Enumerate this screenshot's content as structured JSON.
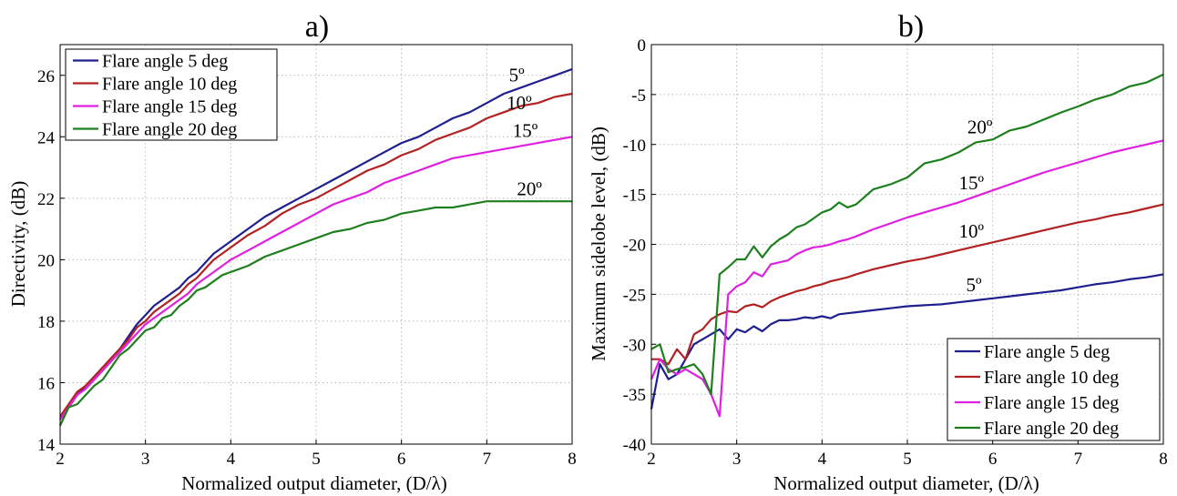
{
  "panels": [
    {
      "title": "a)",
      "xlabel": "Normalized output diameter, (D/λ)",
      "ylabel": "Directivity, (dB)"
    },
    {
      "title": "b)",
      "xlabel": "Normalized output diameter, (D/λ)",
      "ylabel": "Maximum sidelobe level, (dB)"
    }
  ],
  "chart_data": [
    {
      "type": "line",
      "title": "a)",
      "xlabel": "Normalized output diameter, (D/λ)",
      "ylabel": "Directivity, (dB)",
      "xlim": [
        2,
        8
      ],
      "ylim": [
        14,
        27
      ],
      "xticks": [
        "2",
        "3",
        "4",
        "5",
        "6",
        "7",
        "8"
      ],
      "yticks": [
        "14",
        "16",
        "18",
        "20",
        "22",
        "24",
        "26"
      ],
      "xtick_values": [
        2,
        3,
        4,
        5,
        6,
        7,
        8
      ],
      "ytick_values": [
        14,
        16,
        18,
        20,
        22,
        24,
        26
      ],
      "grid": true,
      "legend": "top-left",
      "series": [
        {
          "name": "Flare angle 5 deg",
          "color": "#1f1f8f",
          "x": [
            2,
            2.1,
            2.2,
            2.3,
            2.4,
            2.5,
            2.6,
            2.7,
            2.8,
            2.9,
            3.0,
            3.1,
            3.2,
            3.3,
            3.4,
            3.5,
            3.6,
            3.7,
            3.8,
            3.9,
            4.0,
            4.2,
            4.4,
            4.6,
            4.8,
            5.0,
            5.2,
            5.4,
            5.6,
            5.8,
            6.0,
            6.2,
            6.4,
            6.6,
            6.8,
            7.0,
            7.2,
            7.4,
            7.6,
            7.8,
            8.0
          ],
          "y": [
            14.8,
            15.2,
            15.6,
            15.9,
            16.2,
            16.5,
            16.8,
            17.1,
            17.5,
            17.9,
            18.2,
            18.5,
            18.7,
            18.9,
            19.1,
            19.4,
            19.6,
            19.9,
            20.2,
            20.4,
            20.6,
            21.0,
            21.4,
            21.7,
            22.0,
            22.3,
            22.6,
            22.9,
            23.2,
            23.5,
            23.8,
            24.0,
            24.3,
            24.6,
            24.8,
            25.1,
            25.4,
            25.6,
            25.8,
            26.0,
            26.2
          ]
        },
        {
          "name": "Flare angle 10 deg",
          "color": "#b22222",
          "x": [
            2,
            2.1,
            2.2,
            2.3,
            2.4,
            2.5,
            2.6,
            2.7,
            2.8,
            2.9,
            3.0,
            3.1,
            3.2,
            3.3,
            3.4,
            3.5,
            3.6,
            3.7,
            3.8,
            3.9,
            4.0,
            4.2,
            4.4,
            4.6,
            4.8,
            5.0,
            5.2,
            5.4,
            5.6,
            5.8,
            6.0,
            6.2,
            6.4,
            6.6,
            6.8,
            7.0,
            7.2,
            7.4,
            7.6,
            7.8,
            8.0
          ],
          "y": [
            14.9,
            15.3,
            15.7,
            15.9,
            16.2,
            16.5,
            16.8,
            17.1,
            17.4,
            17.8,
            18.0,
            18.3,
            18.5,
            18.7,
            18.9,
            19.2,
            19.4,
            19.7,
            20.0,
            20.2,
            20.4,
            20.8,
            21.1,
            21.5,
            21.8,
            22.0,
            22.3,
            22.6,
            22.9,
            23.1,
            23.4,
            23.6,
            23.9,
            24.1,
            24.3,
            24.6,
            24.8,
            25.0,
            25.1,
            25.3,
            25.4
          ]
        },
        {
          "name": "Flare angle 15 deg",
          "color": "#e020e0",
          "x": [
            2,
            2.1,
            2.2,
            2.3,
            2.4,
            2.5,
            2.6,
            2.7,
            2.8,
            2.9,
            3.0,
            3.1,
            3.2,
            3.3,
            3.4,
            3.5,
            3.6,
            3.7,
            3.8,
            3.9,
            4.0,
            4.2,
            4.4,
            4.6,
            4.8,
            5.0,
            5.2,
            5.4,
            5.6,
            5.8,
            6.0,
            6.2,
            6.4,
            6.6,
            6.8,
            7.0,
            7.2,
            7.4,
            7.6,
            7.8,
            8.0
          ],
          "y": [
            14.8,
            15.2,
            15.6,
            15.8,
            16.1,
            16.4,
            16.7,
            17.0,
            17.3,
            17.6,
            17.9,
            18.1,
            18.3,
            18.5,
            18.7,
            18.9,
            19.2,
            19.4,
            19.6,
            19.8,
            20.0,
            20.3,
            20.6,
            20.9,
            21.2,
            21.5,
            21.8,
            22.0,
            22.2,
            22.5,
            22.7,
            22.9,
            23.1,
            23.3,
            23.4,
            23.5,
            23.6,
            23.7,
            23.8,
            23.9,
            24.0
          ]
        },
        {
          "name": "Flare angle 20 deg",
          "color": "#1e7f1e",
          "x": [
            2,
            2.1,
            2.2,
            2.3,
            2.4,
            2.5,
            2.6,
            2.7,
            2.8,
            2.9,
            3.0,
            3.1,
            3.2,
            3.3,
            3.4,
            3.5,
            3.6,
            3.7,
            3.8,
            3.9,
            4.0,
            4.2,
            4.4,
            4.6,
            4.8,
            5.0,
            5.2,
            5.4,
            5.6,
            5.8,
            6.0,
            6.2,
            6.4,
            6.6,
            6.8,
            7.0,
            7.2,
            7.4,
            7.6,
            7.8,
            8.0
          ],
          "y": [
            14.6,
            15.2,
            15.3,
            15.6,
            15.9,
            16.1,
            16.5,
            16.9,
            17.1,
            17.4,
            17.7,
            17.8,
            18.1,
            18.2,
            18.5,
            18.7,
            19.0,
            19.1,
            19.3,
            19.5,
            19.6,
            19.8,
            20.1,
            20.3,
            20.5,
            20.7,
            20.9,
            21.0,
            21.2,
            21.3,
            21.5,
            21.6,
            21.7,
            21.7,
            21.8,
            21.9,
            21.9,
            21.9,
            21.9,
            21.9,
            21.9
          ]
        }
      ],
      "annotations": [
        {
          "text": "5º",
          "x": 7.35,
          "y": 25.8
        },
        {
          "text": "10º",
          "x": 7.38,
          "y": 24.9
        },
        {
          "text": "15º",
          "x": 7.45,
          "y": 24.0
        },
        {
          "text": "20º",
          "x": 7.5,
          "y": 22.1
        }
      ]
    },
    {
      "type": "line",
      "title": "b)",
      "xlabel": "Normalized output diameter, (D/λ)",
      "ylabel": "Maximum sidelobe level, (dB)",
      "xlim": [
        2,
        8
      ],
      "ylim": [
        -40,
        0
      ],
      "xticks": [
        "2",
        "3",
        "4",
        "5",
        "6",
        "7",
        "8"
      ],
      "yticks": [
        "-40",
        "-35",
        "-30",
        "-25",
        "-20",
        "-15",
        "-10",
        "-5",
        "0"
      ],
      "xtick_values": [
        2,
        3,
        4,
        5,
        6,
        7,
        8
      ],
      "ytick_values": [
        -40,
        -35,
        -30,
        -25,
        -20,
        -15,
        -10,
        -5,
        0
      ],
      "grid": true,
      "legend": "bottom-right",
      "series": [
        {
          "name": "Flare angle 5 deg",
          "color": "#1f1f8f",
          "x": [
            2.0,
            2.1,
            2.2,
            2.3,
            2.4,
            2.5,
            2.6,
            2.7,
            2.8,
            2.9,
            3.0,
            3.1,
            3.2,
            3.3,
            3.4,
            3.5,
            3.6,
            3.7,
            3.8,
            3.9,
            4.0,
            4.1,
            4.2,
            4.3,
            4.4,
            4.6,
            4.8,
            5.0,
            5.2,
            5.4,
            5.6,
            5.8,
            6.0,
            6.2,
            6.4,
            6.6,
            6.8,
            7.0,
            7.2,
            7.4,
            7.6,
            7.8,
            8.0
          ],
          "y": [
            -36.5,
            -32.0,
            -33.5,
            -33.0,
            -31.5,
            -30.0,
            -29.5,
            -29.0,
            -28.5,
            -29.5,
            -28.5,
            -28.8,
            -28.2,
            -28.7,
            -28.0,
            -27.6,
            -27.6,
            -27.5,
            -27.3,
            -27.4,
            -27.2,
            -27.4,
            -27.0,
            -26.9,
            -26.8,
            -26.6,
            -26.4,
            -26.2,
            -26.1,
            -26.0,
            -25.8,
            -25.6,
            -25.4,
            -25.2,
            -25.0,
            -24.8,
            -24.6,
            -24.3,
            -24.0,
            -23.8,
            -23.5,
            -23.3,
            -23.0
          ]
        },
        {
          "name": "Flare angle 10 deg",
          "color": "#b22222",
          "x": [
            2.0,
            2.1,
            2.2,
            2.3,
            2.4,
            2.5,
            2.6,
            2.7,
            2.8,
            2.9,
            3.0,
            3.1,
            3.2,
            3.3,
            3.4,
            3.5,
            3.6,
            3.7,
            3.8,
            3.9,
            4.0,
            4.1,
            4.2,
            4.3,
            4.4,
            4.6,
            4.8,
            5.0,
            5.2,
            5.4,
            5.6,
            5.8,
            6.0,
            6.2,
            6.4,
            6.6,
            6.8,
            7.0,
            7.2,
            7.4,
            7.6,
            7.8,
            8.0
          ],
          "y": [
            -31.5,
            -31.5,
            -32.0,
            -30.5,
            -31.5,
            -29.0,
            -28.5,
            -27.5,
            -27.0,
            -26.7,
            -26.8,
            -26.2,
            -26.0,
            -26.3,
            -25.7,
            -25.3,
            -25.0,
            -24.7,
            -24.5,
            -24.2,
            -24.0,
            -23.7,
            -23.5,
            -23.3,
            -23.0,
            -22.5,
            -22.1,
            -21.7,
            -21.4,
            -21.0,
            -20.6,
            -20.2,
            -19.8,
            -19.4,
            -19.0,
            -18.6,
            -18.2,
            -17.8,
            -17.5,
            -17.1,
            -16.8,
            -16.4,
            -16.0
          ]
        },
        {
          "name": "Flare angle 15 deg",
          "color": "#e020e0",
          "x": [
            2.0,
            2.1,
            2.2,
            2.3,
            2.4,
            2.5,
            2.6,
            2.7,
            2.8,
            2.9,
            3.0,
            3.1,
            3.2,
            3.3,
            3.4,
            3.5,
            3.6,
            3.7,
            3.8,
            3.9,
            4.0,
            4.1,
            4.2,
            4.3,
            4.4,
            4.6,
            4.8,
            5.0,
            5.2,
            5.4,
            5.6,
            5.8,
            6.0,
            6.2,
            6.4,
            6.6,
            6.8,
            7.0,
            7.2,
            7.4,
            7.6,
            7.8,
            8.0
          ],
          "y": [
            -33.5,
            -31.5,
            -32.5,
            -33.0,
            -32.5,
            -33.0,
            -33.5,
            -35.0,
            -37.2,
            -25.0,
            -24.2,
            -23.8,
            -22.8,
            -23.2,
            -22.0,
            -21.8,
            -21.6,
            -21.0,
            -20.6,
            -20.3,
            -20.2,
            -20.0,
            -19.7,
            -19.5,
            -19.2,
            -18.5,
            -17.9,
            -17.3,
            -16.8,
            -16.3,
            -15.8,
            -15.2,
            -14.6,
            -14.0,
            -13.4,
            -12.8,
            -12.3,
            -11.8,
            -11.3,
            -10.8,
            -10.4,
            -10.0,
            -9.6
          ]
        },
        {
          "name": "Flare angle 20 deg",
          "color": "#1e7f1e",
          "x": [
            2.0,
            2.1,
            2.2,
            2.3,
            2.4,
            2.5,
            2.6,
            2.7,
            2.8,
            2.9,
            3.0,
            3.1,
            3.2,
            3.3,
            3.4,
            3.5,
            3.6,
            3.7,
            3.8,
            3.9,
            4.0,
            4.1,
            4.2,
            4.3,
            4.4,
            4.6,
            4.8,
            5.0,
            5.2,
            5.4,
            5.6,
            5.8,
            6.0,
            6.2,
            6.4,
            6.6,
            6.8,
            7.0,
            7.2,
            7.4,
            7.6,
            7.8,
            8.0
          ],
          "y": [
            -30.5,
            -30.0,
            -32.8,
            -32.5,
            -32.3,
            -32.0,
            -33.0,
            -35.0,
            -23.0,
            -22.3,
            -21.5,
            -21.5,
            -20.2,
            -21.3,
            -20.2,
            -19.5,
            -19.0,
            -18.3,
            -18.0,
            -17.4,
            -16.8,
            -16.5,
            -15.8,
            -16.3,
            -16.0,
            -14.5,
            -14.0,
            -13.3,
            -11.9,
            -11.5,
            -10.8,
            -9.8,
            -9.5,
            -8.6,
            -8.2,
            -7.5,
            -6.8,
            -6.2,
            -5.5,
            -5.0,
            -4.2,
            -3.8,
            -3.0
          ]
        }
      ],
      "annotations": [
        {
          "text": "20º",
          "x": 5.85,
          "y": -8.9
        },
        {
          "text": "15º",
          "x": 5.75,
          "y": -14.5
        },
        {
          "text": "10º",
          "x": 5.75,
          "y": -19.3
        },
        {
          "text": "5º",
          "x": 5.78,
          "y": -24.7
        }
      ]
    }
  ]
}
